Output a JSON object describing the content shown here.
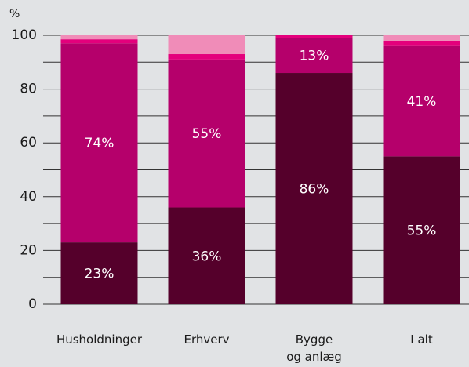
{
  "chart_data": {
    "type": "stacked_bar",
    "y_axis_label": "%",
    "categories": [
      "Husholdninger",
      "Erhverv",
      "Bygge\nog anlæg",
      "I alt"
    ],
    "series": [
      {
        "color": "#55002b",
        "values": [
          23,
          36,
          86,
          55
        ],
        "value_labels": [
          "23%",
          "36%",
          "86%",
          "55%"
        ]
      },
      {
        "color": "#b5006b",
        "values": [
          74,
          55,
          13,
          41
        ],
        "value_labels": [
          "74%",
          "55%",
          "13%",
          "41%"
        ]
      },
      {
        "color": "#e4007c",
        "values": [
          1.5,
          2,
          1,
          2
        ]
      },
      {
        "color": "#f08cb8",
        "values": [
          1.5,
          7,
          0,
          2
        ]
      }
    ],
    "ylim": [
      0,
      100
    ],
    "yticks": [
      0,
      20,
      40,
      60,
      80,
      100
    ],
    "minor_yticks": [
      10,
      30,
      50,
      70,
      90
    ],
    "grid": true
  }
}
